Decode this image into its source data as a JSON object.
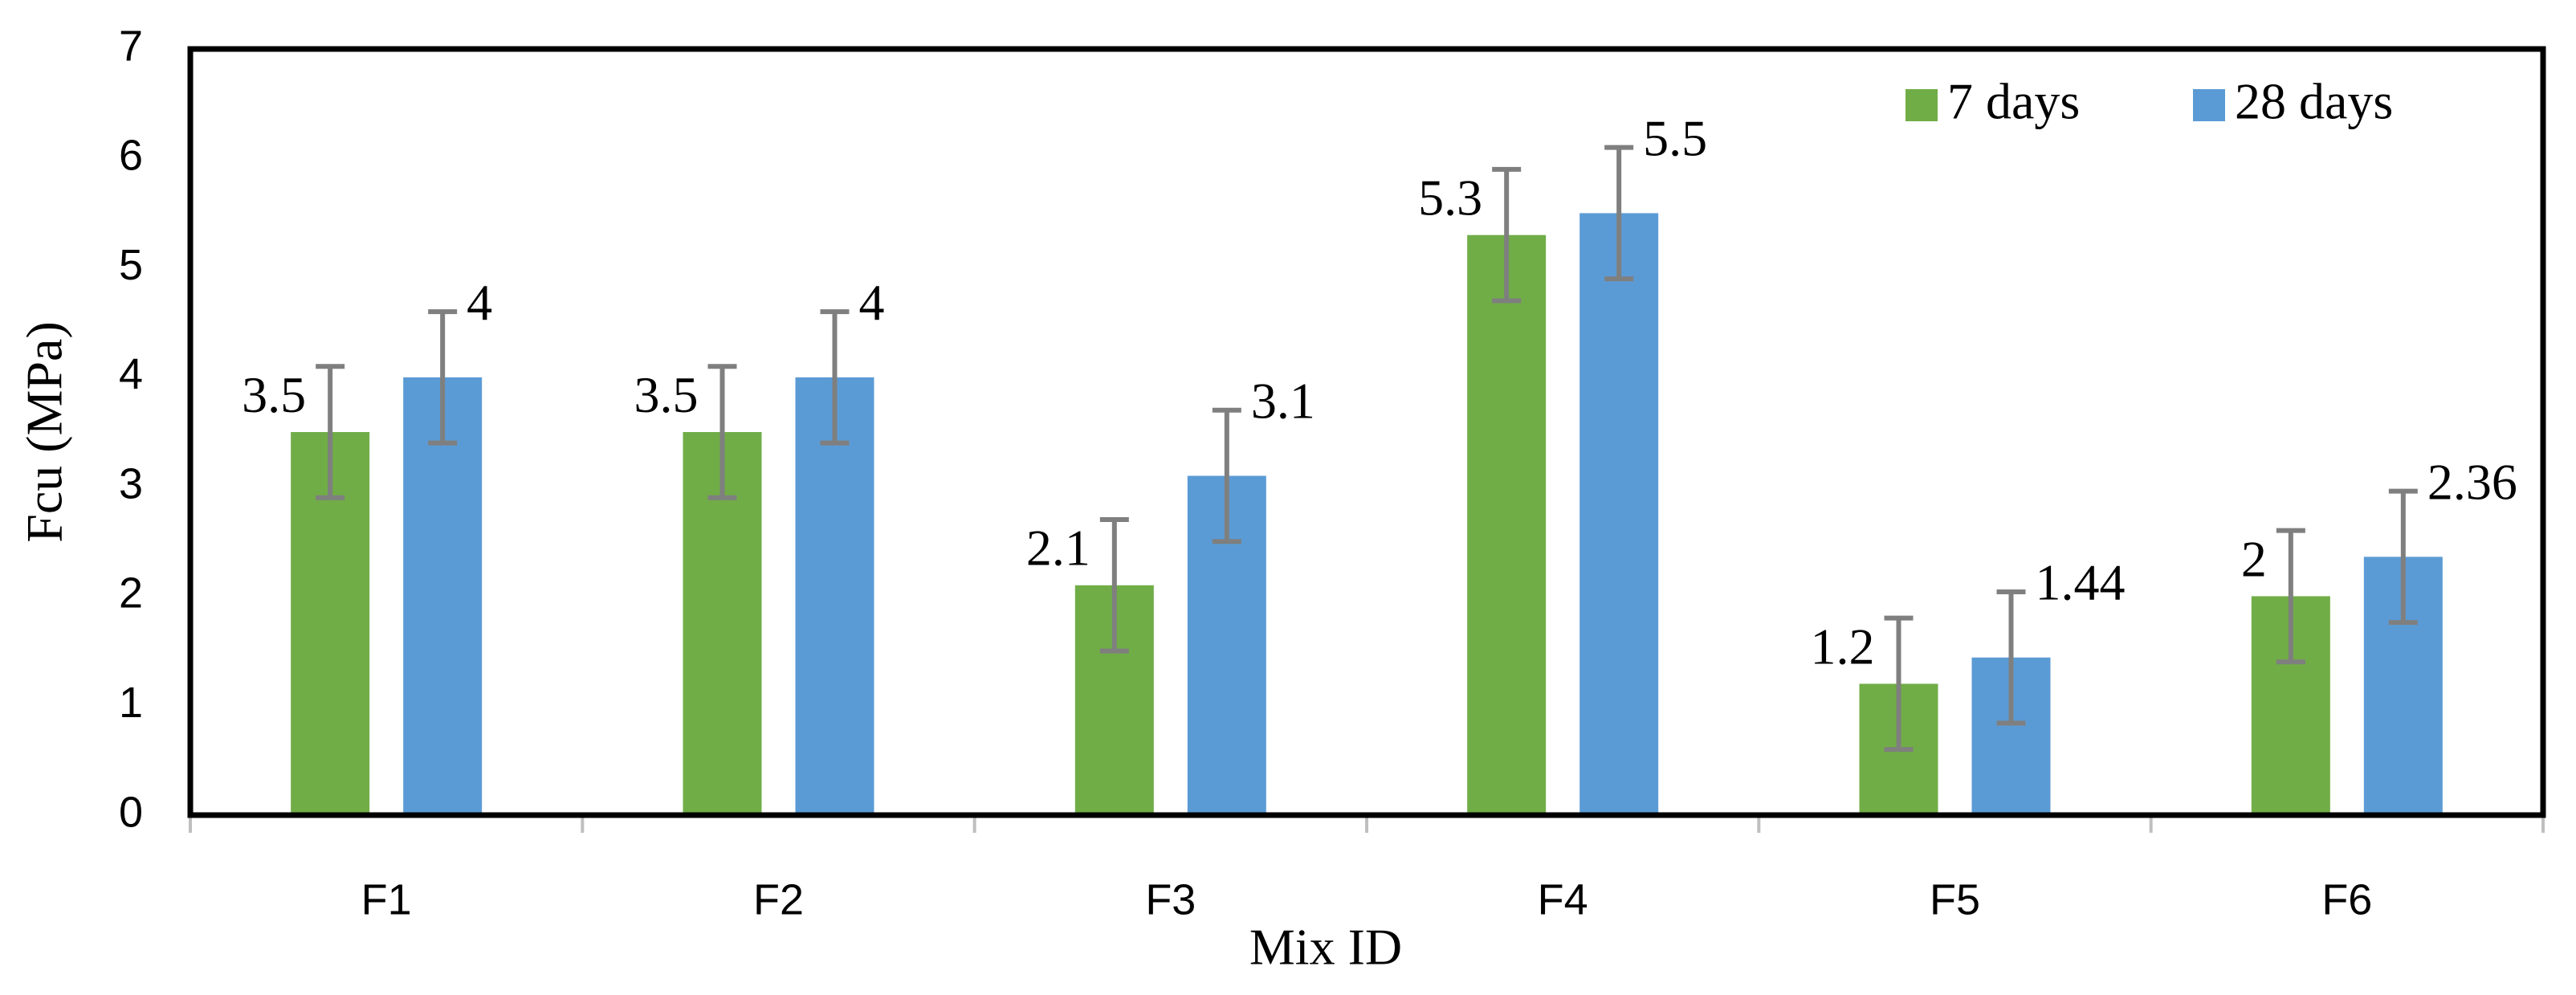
{
  "chart_data": {
    "type": "bar",
    "x_label": "Mix ID",
    "y_label": "Fcu (MPa)",
    "categories": [
      "F1",
      "F2",
      "F3",
      "F4",
      "F5",
      "F6"
    ],
    "series": [
      {
        "name": "7 days",
        "color": "#70ad47",
        "values": [
          3.5,
          3.5,
          2.1,
          5.3,
          1.2,
          2
        ],
        "errors": [
          0.6,
          0.6,
          0.6,
          0.6,
          0.6,
          0.6
        ]
      },
      {
        "name": "28 days",
        "color": "#5b9bd5",
        "values": [
          4,
          4,
          3.1,
          5.5,
          1.44,
          2.36
        ],
        "errors": [
          0.6,
          0.6,
          0.6,
          0.6,
          0.6,
          0.6
        ]
      }
    ],
    "ylim": [
      0,
      7
    ],
    "yticks": [
      0,
      1,
      2,
      3,
      4,
      5,
      6,
      7
    ],
    "grid": false,
    "legend": "top-right"
  }
}
